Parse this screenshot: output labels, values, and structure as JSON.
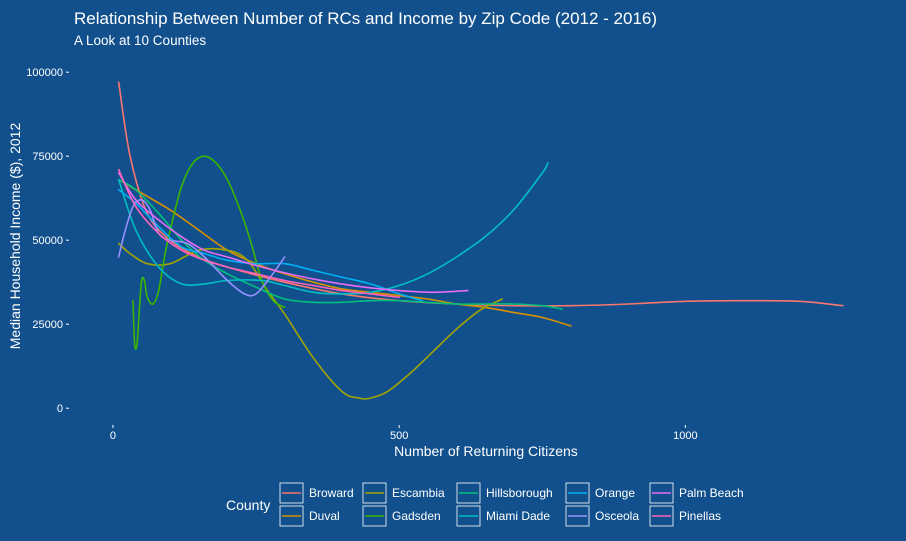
{
  "chart_data": {
    "type": "line",
    "title": "Relationship Between Number of RCs and Income by Zip Code (2012 - 2016)",
    "subtitle": "A Look at 10 Counties",
    "xlabel": "Number of Returning Citizens",
    "ylabel": "Median Household Income ($), 2012",
    "xlim": [
      -75,
      1340
    ],
    "ylim": [
      -5000,
      106000
    ],
    "x_ticks": [
      0,
      500,
      1000
    ],
    "y_ticks": [
      0,
      25000,
      50000,
      75000,
      100000
    ],
    "x_tick_labels": [
      "0",
      "500",
      "1000"
    ],
    "y_tick_labels": [
      "0",
      "25000",
      "50000",
      "75000",
      "100000"
    ],
    "grid": false,
    "legend": {
      "title": "County",
      "position": "bottom",
      "columns": 5
    },
    "series": [
      {
        "name": "Broward",
        "color": "#f8766d",
        "x": [
          10,
          30,
          60,
          100,
          150,
          200,
          300,
          400,
          500,
          600,
          700,
          800,
          900,
          1000,
          1100,
          1200,
          1275
        ],
        "y": [
          97000,
          75000,
          58000,
          50000,
          45000,
          42000,
          37500,
          34000,
          32000,
          31000,
          30500,
          30500,
          31000,
          31800,
          32000,
          31800,
          30500
        ]
      },
      {
        "name": "Duval",
        "color": "#d89000",
        "x": [
          10,
          50,
          100,
          150,
          200,
          250,
          300,
          350,
          400,
          450,
          500,
          550,
          600,
          650,
          700,
          750,
          800
        ],
        "y": [
          68000,
          64000,
          59000,
          53000,
          47000,
          43000,
          40000,
          37500,
          35500,
          34500,
          33500,
          32500,
          31000,
          30000,
          28500,
          27000,
          24500
        ]
      },
      {
        "name": "Escambia",
        "color": "#a3a500",
        "x": [
          10,
          30,
          60,
          100,
          150,
          200,
          235,
          270,
          300,
          350,
          400,
          430,
          450,
          480,
          520,
          560,
          600,
          640,
          680
        ],
        "y": [
          49000,
          46000,
          43000,
          43000,
          47000,
          47000,
          44000,
          35000,
          28000,
          15000,
          5000,
          3000,
          3000,
          5000,
          10500,
          17000,
          23500,
          29000,
          32500
        ]
      },
      {
        "name": "Gadsden",
        "color": "#39b600",
        "x": [
          35,
          38,
          42,
          46,
          50,
          55,
          60,
          70,
          80,
          90,
          100,
          120,
          140,
          160,
          180,
          200,
          220,
          240,
          260,
          280,
          300
        ],
        "y": [
          32000,
          19000,
          19000,
          29000,
          38000,
          38000,
          33000,
          31000,
          35000,
          45000,
          53000,
          66000,
          73000,
          75000,
          73000,
          68000,
          60000,
          50000,
          38000,
          32000,
          30000
        ]
      },
      {
        "name": "Hillsborough",
        "color": "#00bf7d",
        "x": [
          10,
          40,
          80,
          120,
          160,
          200,
          250,
          300,
          350,
          400,
          450,
          500,
          550,
          600,
          650,
          700,
          750,
          785
        ],
        "y": [
          68000,
          65000,
          58000,
          50000,
          44000,
          40000,
          36000,
          32500,
          31500,
          31500,
          32000,
          32000,
          31500,
          31000,
          31000,
          31000,
          30500,
          29500
        ]
      },
      {
        "name": "Miami Dade",
        "color": "#00bfc4",
        "x": [
          10,
          40,
          80,
          120,
          160,
          200,
          260,
          300,
          350,
          400,
          450,
          500,
          550,
          600,
          650,
          700,
          750,
          760
        ],
        "y": [
          68000,
          53000,
          42000,
          37000,
          37000,
          38000,
          38000,
          36500,
          34500,
          34000,
          34500,
          36500,
          40000,
          45000,
          51000,
          59000,
          70000,
          73000
        ]
      },
      {
        "name": "Orange",
        "color": "#00b0f6",
        "x": [
          10,
          40,
          80,
          120,
          160,
          200,
          250,
          300,
          350,
          400,
          450,
          500,
          540
        ],
        "y": [
          65000,
          61000,
          54000,
          48000,
          46000,
          44000,
          43000,
          43000,
          41000,
          39000,
          37000,
          34000,
          32000
        ]
      },
      {
        "name": "Osceola",
        "color": "#9590ff",
        "x": [
          10,
          20,
          35,
          50,
          65,
          80,
          100,
          130,
          160,
          200,
          230,
          250,
          275,
          300
        ],
        "y": [
          45000,
          52000,
          60000,
          62000,
          59000,
          52000,
          50000,
          49000,
          45000,
          38000,
          34000,
          34000,
          39000,
          45000
        ]
      },
      {
        "name": "Palm Beach",
        "color": "#e76bf3",
        "x": [
          10,
          40,
          80,
          120,
          160,
          200,
          260,
          320,
          380,
          440,
          500,
          560,
          620
        ],
        "y": [
          70000,
          62000,
          56000,
          51000,
          47000,
          45000,
          42000,
          39500,
          37500,
          36000,
          35000,
          34500,
          35000
        ]
      },
      {
        "name": "Pinellas",
        "color": "#ff62bc",
        "x": [
          10,
          40,
          80,
          120,
          160,
          200,
          250,
          300,
          350,
          400,
          450,
          500
        ],
        "y": [
          71000,
          60000,
          52000,
          47000,
          44000,
          42000,
          40000,
          38000,
          36500,
          35000,
          34000,
          33000
        ]
      }
    ]
  }
}
